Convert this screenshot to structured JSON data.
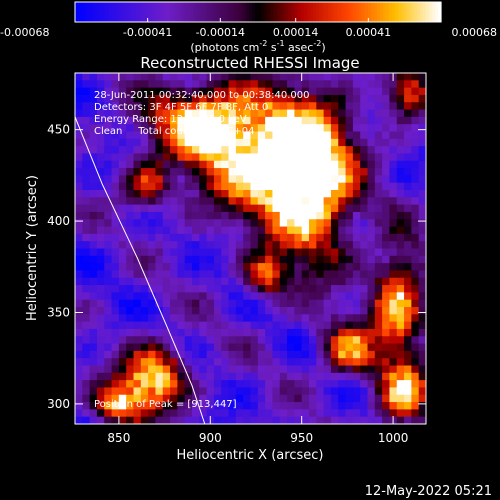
{
  "chart_data": {
    "type": "heatmap",
    "title": "Reconstructed RHESSI Image",
    "xlabel": "Heliocentric X (arcsec)",
    "ylabel": "Heliocentric Y (arcsec)",
    "xlim": [
      826,
      1018
    ],
    "ylim": [
      289,
      481
    ],
    "x_ticks": [
      850,
      900,
      950,
      1000
    ],
    "y_ticks": [
      300,
      350,
      400,
      450
    ],
    "colorbar": {
      "range": [
        -0.00068,
        0.00068
      ],
      "ticks": [
        -0.00068,
        -0.00041,
        -0.00014,
        0.00014,
        0.00041,
        0.00068
      ],
      "tick_labels": [
        "-0.00068",
        "-0.00041",
        "-0.00014",
        "0.00014",
        "0.00041",
        "0.00068"
      ],
      "unit_main": "(photons cm",
      "unit_exp1": "-2",
      "unit_mid": " s",
      "unit_exp2": "-1",
      "unit_tail": " asec",
      "unit_exp3": "-2",
      "unit_close": ")"
    },
    "annotations": {
      "time": "28-Jun-2011 00:32:40.000 to 00:38:40.000",
      "detectors": "Detectors: 3F 4F 5F 6F 7F 8F, Att 0",
      "energy": "Energy Range: 12.0 - 25.0 keV",
      "clean": "Clean     Total counts: 2.61E+04",
      "peak": "Position of Peak = [913,447]"
    },
    "peak_position": [
      913,
      447
    ],
    "emission_regions": [
      {
        "x": 930,
        "y": 435,
        "intensity": 0.00068,
        "sx": 26,
        "sy": 22
      },
      {
        "x": 955,
        "y": 418,
        "intensity": 0.0006,
        "sx": 16,
        "sy": 30
      },
      {
        "x": 895,
        "y": 455,
        "intensity": 0.0005,
        "sx": 20,
        "sy": 14
      },
      {
        "x": 870,
        "y": 315,
        "intensity": 0.0006,
        "sx": 12,
        "sy": 12
      },
      {
        "x": 1003,
        "y": 355,
        "intensity": 0.0005,
        "sx": 10,
        "sy": 22
      },
      {
        "x": 1005,
        "y": 305,
        "intensity": 0.00045,
        "sx": 10,
        "sy": 12
      },
      {
        "x": 975,
        "y": 330,
        "intensity": 0.0004,
        "sx": 10,
        "sy": 10
      },
      {
        "x": 850,
        "y": 300,
        "intensity": 0.00045,
        "sx": 10,
        "sy": 8
      },
      {
        "x": 1008,
        "y": 470,
        "intensity": 0.00035,
        "sx": 9,
        "sy": 9
      },
      {
        "x": 930,
        "y": 370,
        "intensity": 0.0003,
        "sx": 8,
        "sy": 8
      },
      {
        "x": 865,
        "y": 420,
        "intensity": 0.0002,
        "sx": 9,
        "sy": 9
      }
    ],
    "limb_curve": [
      [
        826,
        457
      ],
      [
        841,
        420
      ],
      [
        860,
        380
      ],
      [
        876,
        343
      ],
      [
        890,
        310
      ],
      [
        897,
        289
      ]
    ]
  },
  "footer": {
    "date": "12-May-2022 05:21"
  }
}
